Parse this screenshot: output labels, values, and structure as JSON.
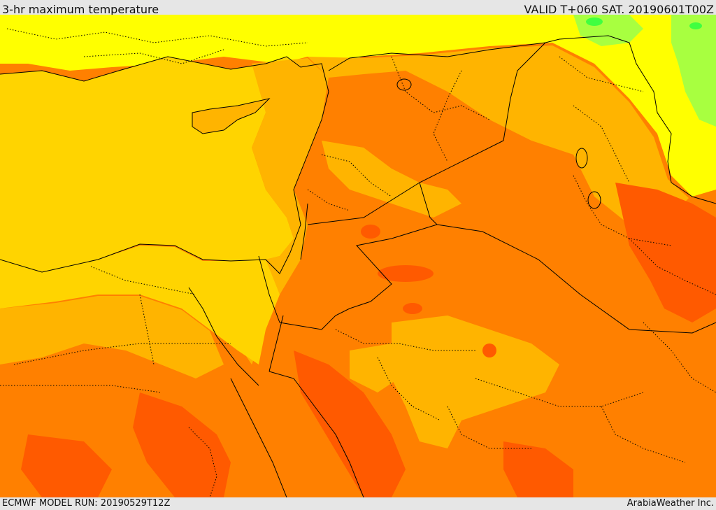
{
  "header": {
    "title": "3-hr maximum temperature",
    "valid": "VALID T+060 SAT. 20190601T00Z"
  },
  "footer": {
    "model_run": "ECMWF MODEL RUN: 20190529T12Z",
    "credit": "ArabiaWeather Inc."
  },
  "palette": {
    "sea": "#ffd400",
    "yellow": "#ffff00",
    "amber": "#ffb400",
    "orange": "#ff8000",
    "dark_orange": "#ff5a00",
    "red_orange": "#ff4a10",
    "light_green": "#a8ff40",
    "green": "#40ff40",
    "border": "#000000"
  }
}
